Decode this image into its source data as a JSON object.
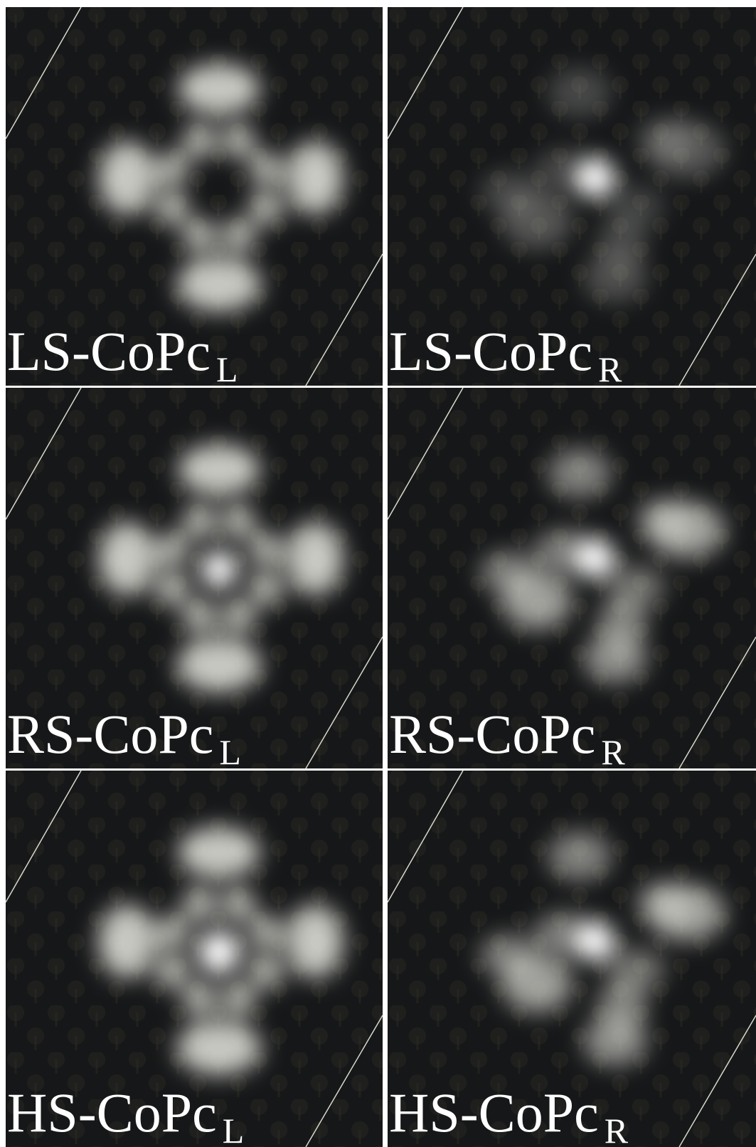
{
  "panels": [
    {
      "label": "LS-CoPc",
      "subscript": "L"
    },
    {
      "label": "LS-CoPc",
      "subscript": "R"
    },
    {
      "label": "RS-CoPc",
      "subscript": "L"
    },
    {
      "label": "RS-CoPc",
      "subscript": "R"
    },
    {
      "label": "HS-CoPc",
      "subscript": "L"
    },
    {
      "label": "HS-CoPc",
      "subscript": "R"
    }
  ]
}
